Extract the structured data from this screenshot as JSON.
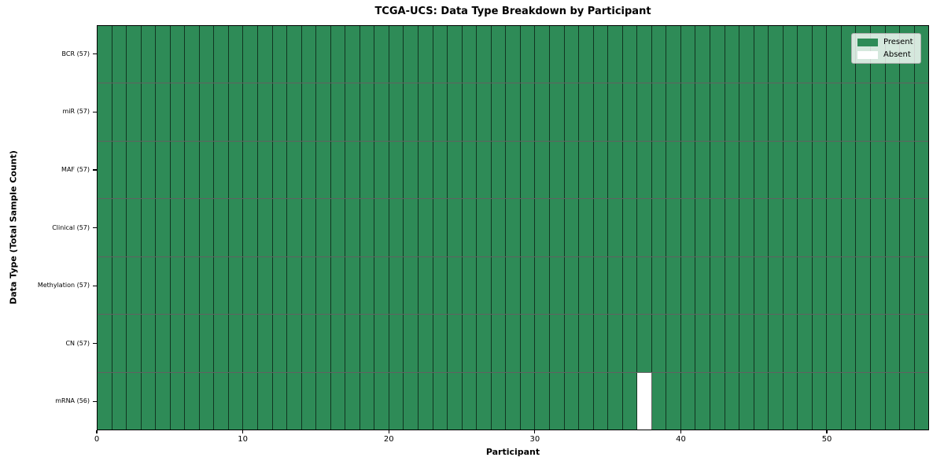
{
  "chart_data": {
    "type": "heatmap",
    "title": "TCGA-UCS: Data Type Breakdown by Participant",
    "xlabel": "Participant",
    "ylabel": "Data Type (Total Sample Count)",
    "n_participants": 57,
    "x_ticks": [
      0,
      10,
      20,
      30,
      40,
      50
    ],
    "rows": [
      {
        "label": "BCR (57)",
        "data_type": "BCR",
        "total_samples": 57,
        "absent_participants": []
      },
      {
        "label": "miR (57)",
        "data_type": "miR",
        "total_samples": 57,
        "absent_participants": []
      },
      {
        "label": "MAF (57)",
        "data_type": "MAF",
        "total_samples": 57,
        "absent_participants": []
      },
      {
        "label": "Clinical (57)",
        "data_type": "Clinical",
        "total_samples": 57,
        "absent_participants": []
      },
      {
        "label": "Methylation (57)",
        "data_type": "Methylation",
        "total_samples": 57,
        "absent_participants": []
      },
      {
        "label": "CN (57)",
        "data_type": "CN",
        "total_samples": 57,
        "absent_participants": []
      },
      {
        "label": "mRNA (56)",
        "data_type": "mRNA",
        "total_samples": 56,
        "absent_participants": [
          37
        ]
      }
    ],
    "legend": [
      {
        "label": "Present",
        "color": "#2e8b57"
      },
      {
        "label": "Absent",
        "color": "#ffffff"
      }
    ],
    "colors": {
      "present": "#2e8b57",
      "absent": "#ffffff",
      "cell_edge": "rgba(0,0,0,0.62)",
      "axis": "#000000",
      "background": "#ffffff"
    }
  }
}
